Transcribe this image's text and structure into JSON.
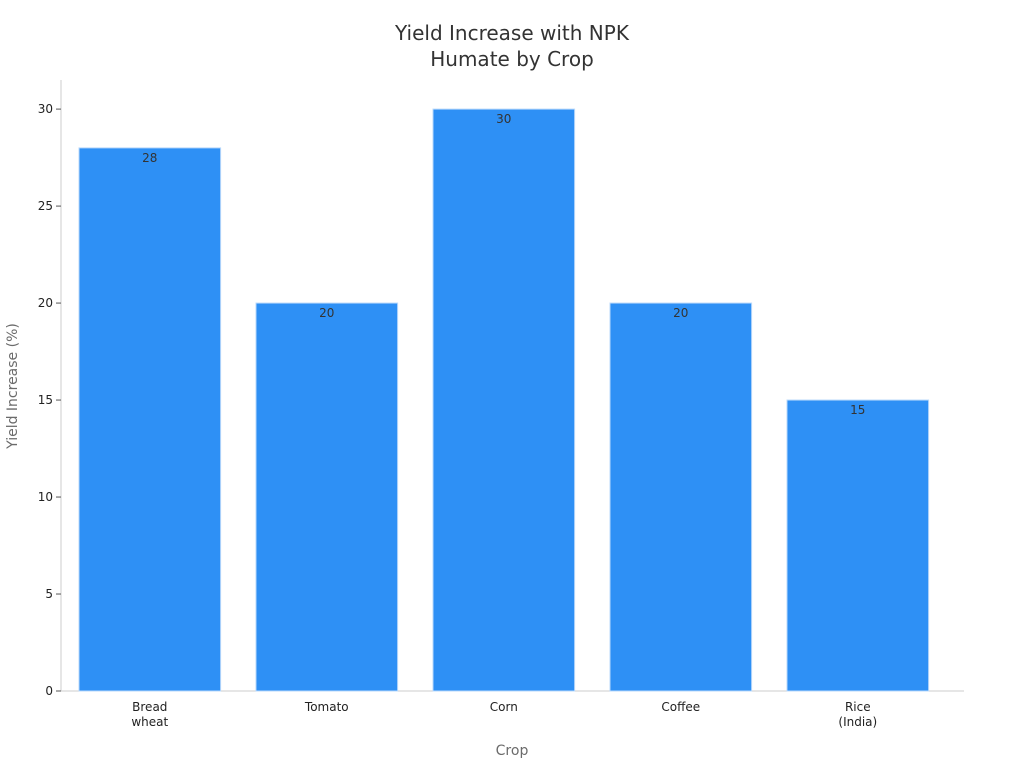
{
  "chart_data": {
    "type": "bar",
    "title": "Yield Increase with NPK\nHumate by Crop",
    "xlabel": "Crop",
    "ylabel": "Yield Increase (%)",
    "categories": [
      "Bread\nwheat",
      "Tomato",
      "Corn",
      "Coffee",
      "Rice\n(India)"
    ],
    "values": [
      28,
      20,
      30,
      20,
      15
    ],
    "data_labels": [
      "28",
      "20",
      "30",
      "20",
      "15"
    ],
    "yticks": [
      0,
      5,
      10,
      15,
      20,
      25,
      30
    ],
    "ylim": [
      0,
      31.5
    ],
    "grid": false,
    "legend": "none",
    "bar_color": "#2e90f5",
    "bar_edge_color": "#b8d8fb",
    "axis_color": "#cccccc"
  }
}
